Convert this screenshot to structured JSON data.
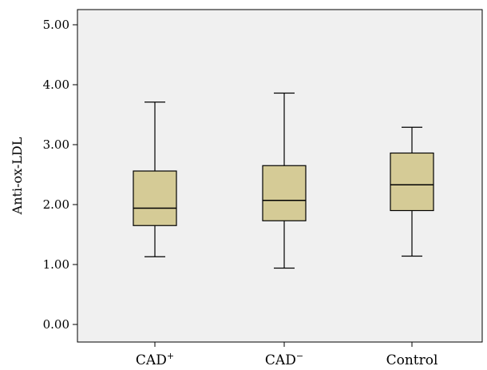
{
  "chart_data": {
    "type": "boxplot",
    "title": "",
    "xlabel": "",
    "ylabel": "Anti-ox-LDL",
    "ylim": [
      0,
      5
    ],
    "yticks": [
      "0.00",
      "1.00",
      "2.00",
      "3.00",
      "4.00",
      "5.00"
    ],
    "categories": [
      {
        "base": "CAD",
        "sup": "+"
      },
      {
        "base": "CAD",
        "sup": "−"
      },
      {
        "base": "Control",
        "sup": ""
      }
    ],
    "boxes": [
      {
        "min": 1.13,
        "q1": 1.65,
        "median": 1.94,
        "q3": 2.56,
        "max": 3.71
      },
      {
        "min": 0.94,
        "q1": 1.73,
        "median": 2.07,
        "q3": 2.65,
        "max": 3.86
      },
      {
        "min": 1.14,
        "q1": 1.9,
        "median": 2.33,
        "q3": 2.86,
        "max": 3.29
      }
    ],
    "colors": {
      "plot_bg": "#f0f0f0",
      "box_fill": "#d5cb96",
      "stroke": "#000000"
    },
    "grid": false
  }
}
